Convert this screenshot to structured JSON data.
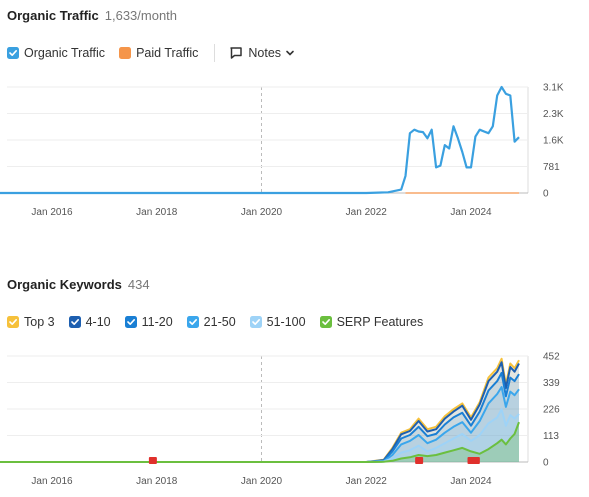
{
  "traffic": {
    "title": "Organic Traffic",
    "subtitle": "1,633/month",
    "legend": {
      "organic": {
        "label": "Organic Traffic",
        "color": "#3aa0e0"
      },
      "paid": {
        "label": "Paid Traffic",
        "color": "#f5954a"
      },
      "notes": "Notes"
    }
  },
  "keywords": {
    "title": "Organic Keywords",
    "subtitle": "434",
    "legend": [
      {
        "label": "Top 3",
        "color": "#f6c13b"
      },
      {
        "label": "4-10",
        "color": "#1d5fb0"
      },
      {
        "label": "11-20",
        "color": "#1a7fd4"
      },
      {
        "label": "21-50",
        "color": "#3aa6ec"
      },
      {
        "label": "51-100",
        "color": "#9ed3f7"
      },
      {
        "label": "SERP Features",
        "color": "#6bbf3f"
      }
    ]
  },
  "chart_data": [
    {
      "type": "line",
      "x_ticks": [
        "Jan 2016",
        "Jan 2018",
        "Jan 2020",
        "Jan 2022",
        "Jan 2024"
      ],
      "y_ticks": [
        "3.1K",
        "2.3K",
        "1.6K",
        "781",
        "0"
      ],
      "ylim": [
        0,
        3100
      ],
      "series": [
        {
          "name": "Organic Traffic",
          "color": "#3aa0e0",
          "points": [
            [
              "2014-10",
              0
            ],
            [
              "2016-01",
              0
            ],
            [
              "2018-01",
              0
            ],
            [
              "2020-01",
              0
            ],
            [
              "2022-01",
              0
            ],
            [
              "2022-06",
              20
            ],
            [
              "2022-09",
              100
            ],
            [
              "2022-10",
              500
            ],
            [
              "2022-11",
              1750
            ],
            [
              "2022-12",
              1850
            ],
            [
              "2023-01",
              1800
            ],
            [
              "2023-02",
              1780
            ],
            [
              "2023-03",
              1600
            ],
            [
              "2023-04",
              1850
            ],
            [
              "2023-05",
              750
            ],
            [
              "2023-06",
              800
            ],
            [
              "2023-07",
              1400
            ],
            [
              "2023-08",
              1300
            ],
            [
              "2023-09",
              1950
            ],
            [
              "2023-10",
              1600
            ],
            [
              "2023-11",
              1200
            ],
            [
              "2023-12",
              750
            ],
            [
              "2024-01",
              750
            ],
            [
              "2024-02",
              1650
            ],
            [
              "2024-03",
              1850
            ],
            [
              "2024-04",
              1800
            ],
            [
              "2024-05",
              1750
            ],
            [
              "2024-06",
              1950
            ],
            [
              "2024-07",
              2850
            ],
            [
              "2024-08",
              3100
            ],
            [
              "2024-09",
              2900
            ],
            [
              "2024-10",
              2850
            ],
            [
              "2024-11",
              1500
            ],
            [
              "2024-12",
              1633
            ]
          ]
        },
        {
          "name": "Paid Traffic",
          "color": "#f5954a",
          "points": [
            [
              "2022-10",
              0
            ],
            [
              "2024-12",
              0
            ]
          ]
        }
      ]
    },
    {
      "type": "area",
      "x_ticks": [
        "Jan 2016",
        "Jan 2018",
        "Jan 2020",
        "Jan 2022",
        "Jan 2024"
      ],
      "y_ticks": [
        "452",
        "339",
        "226",
        "113",
        "0"
      ],
      "ylim": [
        0,
        452
      ],
      "months": [
        "2014-10",
        "2016-01",
        "2018-01",
        "2020-01",
        "2022-01",
        "2022-05",
        "2022-07",
        "2022-09",
        "2022-11",
        "2023-01",
        "2023-03",
        "2023-05",
        "2023-07",
        "2023-09",
        "2023-11",
        "2024-01",
        "2024-03",
        "2024-05",
        "2024-07",
        "2024-08",
        "2024-09",
        "2024-10",
        "2024-11",
        "2024-12"
      ],
      "series": [
        {
          "name": "Top 3",
          "color": "#f6c13b",
          "values": [
            0,
            0,
            0,
            0,
            0,
            10,
            60,
            125,
            140,
            185,
            140,
            150,
            195,
            225,
            250,
            190,
            255,
            360,
            400,
            440,
            330,
            420,
            400,
            434
          ]
        },
        {
          "name": "4-10",
          "color": "#1d5fb0",
          "values": [
            0,
            0,
            0,
            0,
            0,
            8,
            55,
            118,
            132,
            175,
            130,
            140,
            185,
            215,
            240,
            180,
            245,
            345,
            385,
            425,
            315,
            405,
            385,
            420
          ]
        },
        {
          "name": "11-20",
          "color": "#1a7fd4",
          "values": [
            0,
            0,
            0,
            0,
            0,
            5,
            45,
            100,
            115,
            150,
            110,
            120,
            160,
            190,
            210,
            155,
            215,
            305,
            345,
            380,
            280,
            360,
            345,
            375
          ]
        },
        {
          "name": "21-50",
          "color": "#3aa6ec",
          "values": [
            0,
            0,
            0,
            0,
            0,
            3,
            30,
            75,
            90,
            115,
            80,
            95,
            125,
            150,
            170,
            125,
            175,
            250,
            290,
            320,
            235,
            300,
            285,
            310
          ]
        },
        {
          "name": "51-100",
          "color": "#9ed3f7",
          "values": [
            0,
            0,
            0,
            0,
            0,
            2,
            15,
            40,
            50,
            70,
            45,
            60,
            80,
            100,
            120,
            90,
            115,
            165,
            190,
            225,
            155,
            200,
            185,
            205
          ]
        },
        {
          "name": "SERP Features",
          "color": "#6bbf3f",
          "values": [
            0,
            0,
            0,
            0,
            0,
            1,
            5,
            15,
            20,
            30,
            25,
            30,
            40,
            50,
            60,
            45,
            35,
            55,
            80,
            95,
            75,
            100,
            120,
            170
          ]
        }
      ]
    }
  ]
}
